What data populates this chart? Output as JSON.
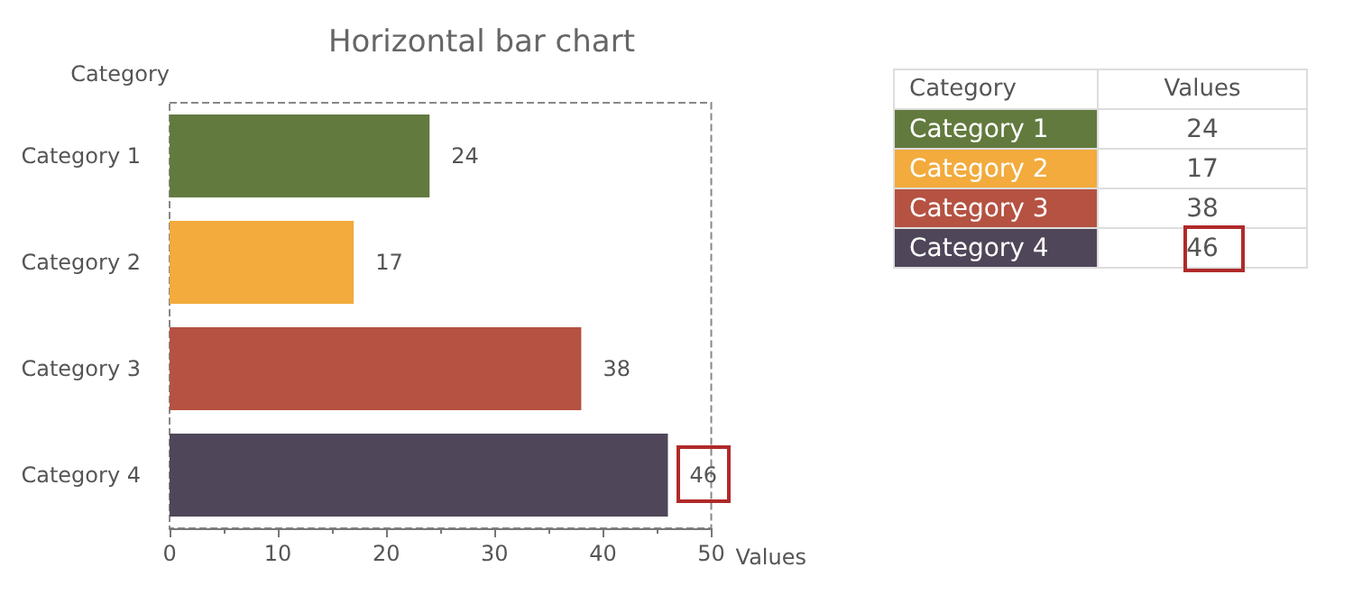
{
  "chart_data": {
    "type": "bar",
    "orientation": "horizontal",
    "title": "Horizontal bar chart",
    "xlabel": "Values",
    "ylabel": "Category",
    "categories": [
      "Category 1",
      "Category 2",
      "Category 3",
      "Category 4"
    ],
    "values": [
      24,
      17,
      38,
      46
    ],
    "value_labels": [
      "24",
      "17",
      "38",
      "46"
    ],
    "colors": [
      "#627a3e",
      "#f2ab3c",
      "#b55242",
      "#4f4659"
    ],
    "xlim": [
      0,
      50
    ],
    "xticks": [
      0,
      10,
      20,
      30,
      40,
      50
    ],
    "grid": false
  }
}
